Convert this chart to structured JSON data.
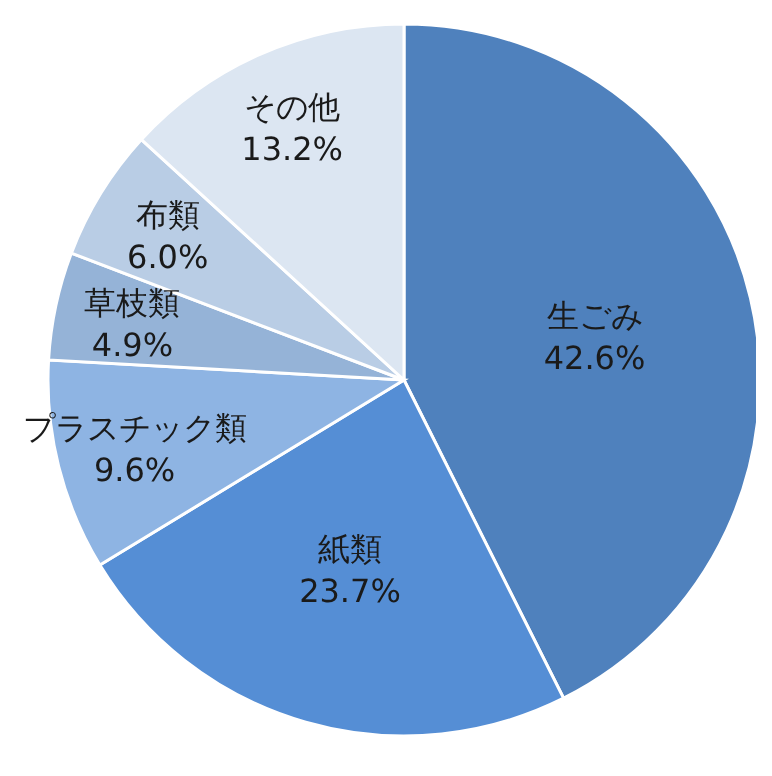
{
  "chart_data": {
    "type": "pie",
    "categories": [
      "生ごみ",
      "紙類",
      "プラスチック類",
      "草枝類",
      "布類",
      "その他"
    ],
    "values": [
      42.6,
      23.7,
      9.6,
      4.9,
      6.0,
      13.2
    ],
    "colors": [
      "#4f81bd",
      "#558ed5",
      "#8eb4e3",
      "#95b3d7",
      "#b9cde5",
      "#dce6f2"
    ],
    "value_labels": [
      "42.6%",
      "23.7%",
      "9.6%",
      "4.9%",
      "6.0%",
      "13.2%"
    ],
    "legend": false
  }
}
